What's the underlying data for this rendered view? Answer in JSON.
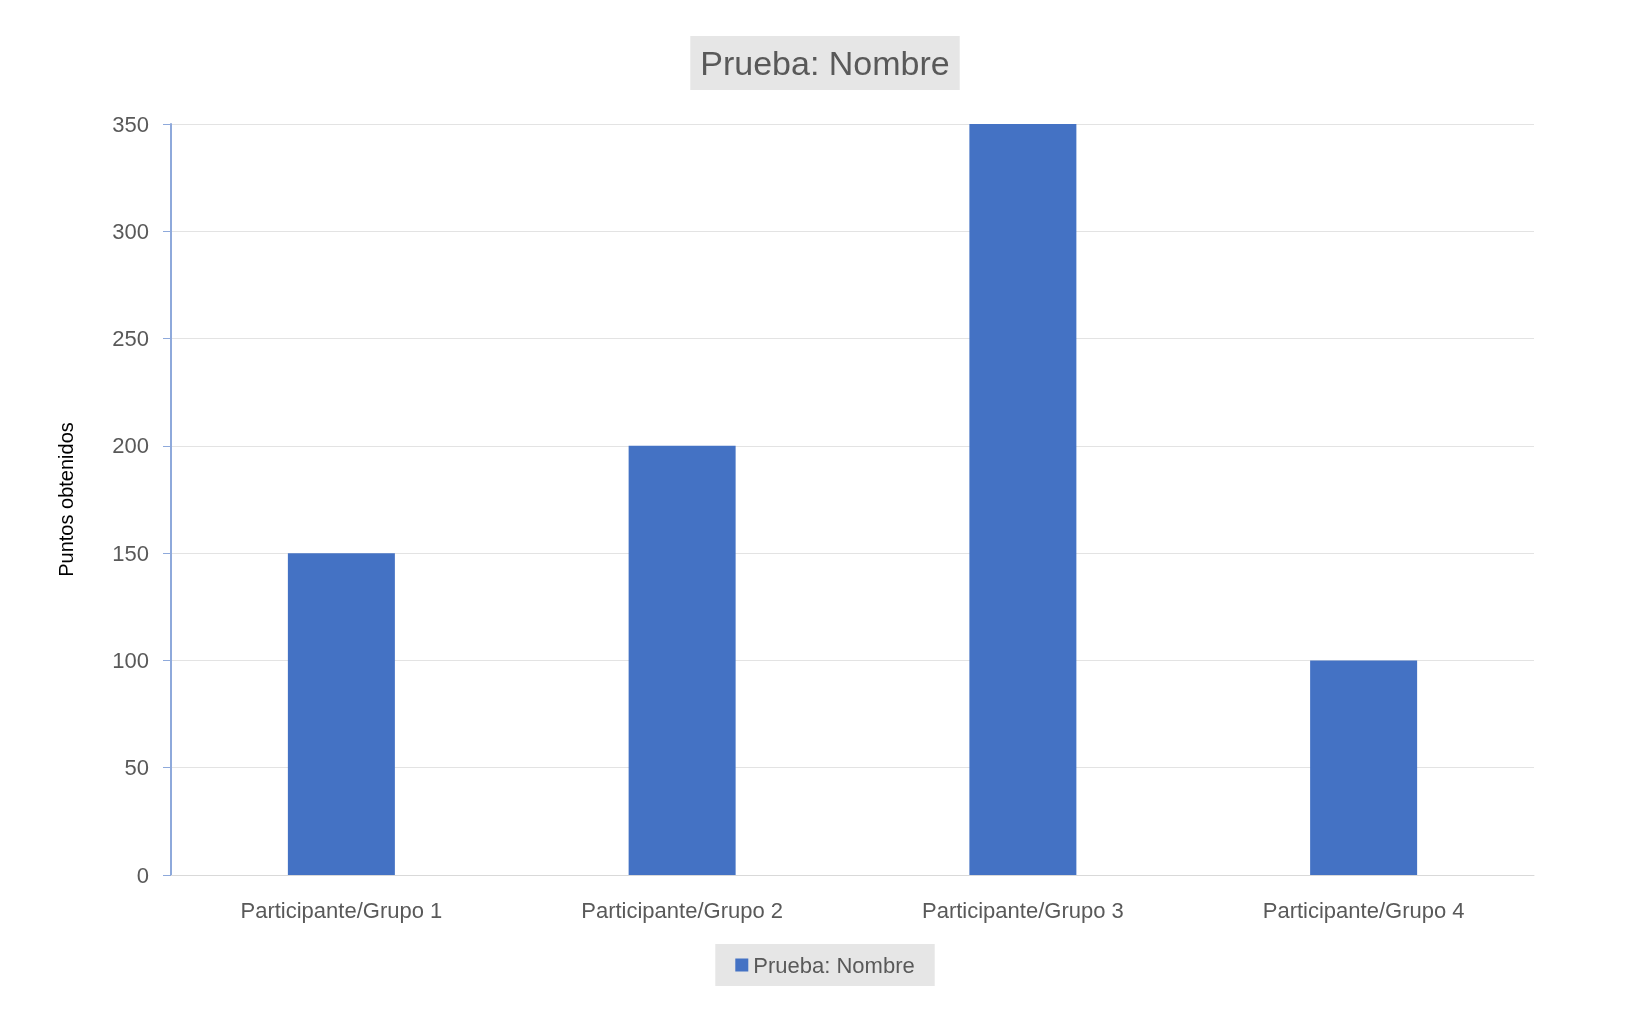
{
  "chart_data": {
    "type": "bar",
    "title": "Prueba: Nombre",
    "ylabel": "Puntos obtenidos",
    "categories": [
      "Participante/Grupo 1",
      "Participante/Grupo 2",
      "Participante/Grupo 3",
      "Participante/Grupo 4"
    ],
    "series": [
      {
        "name": "Prueba: Nombre",
        "color": "#4472c4",
        "values": [
          150,
          200,
          350,
          100
        ]
      }
    ],
    "ylim": [
      0,
      350
    ],
    "yticks": [
      0,
      50,
      100,
      150,
      200,
      250,
      300,
      350
    ],
    "grid": "y",
    "legend": "bottom"
  }
}
